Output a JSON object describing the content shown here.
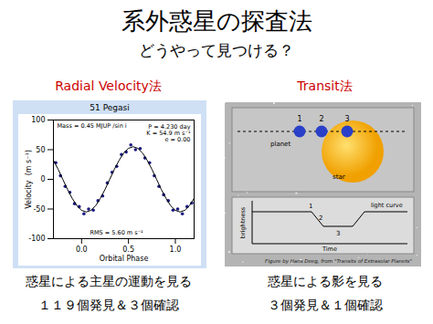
{
  "chart_data": {
    "type": "scatter",
    "title": "51 Pegasi",
    "x_label": "Orbital Phase",
    "y_label": "Velocity  (m s⁻¹)",
    "xlim": [
      -0.3,
      1.2
    ],
    "xticks": [
      {
        "value": 0,
        "label": "0.0"
      },
      0.5,
      {
        "value": 1,
        "label": "1.0"
      }
    ],
    "ylim": [
      -100,
      100
    ],
    "yticks": [
      -100,
      -50,
      0,
      50,
      100
    ],
    "grid": false,
    "annotations": [
      "Mass = 0.45 MJUP /sin i",
      "P = 4.230 day",
      "K = 54.9 m s⁻¹",
      "e = 0.00",
      "RMS = 5.60 m s⁻¹"
    ],
    "series": [
      {
        "type": "scatter",
        "marker": "circle",
        "color": "#1a1a80",
        "x": [
          -0.275,
          -0.225,
          -0.175,
          -0.125,
          -0.075,
          -0.025,
          0.025,
          0.075,
          0.125,
          0.175,
          0.225,
          0.275,
          0.325,
          0.375,
          0.425,
          0.475,
          0.525,
          0.575,
          0.625,
          0.675,
          0.725,
          0.775,
          0.825,
          0.875,
          0.925,
          0.975,
          1.025,
          1.075,
          1.125,
          1.175
        ],
        "values": [
          28,
          6,
          -12,
          -22,
          -41,
          -46,
          -58,
          -50,
          -52,
          -36,
          -28,
          -6,
          12,
          22,
          42,
          46,
          58,
          50,
          52,
          36,
          28,
          6,
          -12,
          -26,
          -36,
          -52,
          -50,
          -58,
          -46,
          -40
        ]
      },
      {
        "type": "line",
        "line_style": "solid",
        "color": "#000000",
        "x": [
          -0.3,
          -0.25,
          -0.2,
          -0.15,
          -0.1,
          -0.05,
          0,
          0.05,
          0.1,
          0.15,
          0.2,
          0.25,
          0.3,
          0.35,
          0.4,
          0.45,
          0.5,
          0.55,
          0.6,
          0.65,
          0.7,
          0.75,
          0.8,
          0.85,
          0.9,
          0.95,
          1,
          1.05,
          1.1,
          1.15,
          1.2
        ],
        "values": [
          32,
          17,
          0,
          -17,
          -32,
          -44.5,
          -52.3,
          -55,
          -52.3,
          -44.5,
          -32,
          -17,
          0,
          17,
          32,
          44.5,
          52.3,
          55,
          52.3,
          44.5,
          32,
          17,
          0,
          -17,
          -32,
          -44.5,
          -52.3,
          -55,
          -52.3,
          -44.5,
          -32
        ]
      }
    ]
  },
  "document": {
    "header": {
      "title": "系外惑星の探査法",
      "subtitle": "どうやって見つける？"
    },
    "left": {
      "heading": "Radial Velocity法",
      "caption": [
        "惑星による主星の運動を見る",
        "１１９個発見＆３個確認"
      ]
    },
    "right": {
      "heading": "Transit法",
      "figure": {
        "planet": "planet",
        "star": "star",
        "steps": [
          "1",
          "2",
          "3"
        ],
        "light_curve": "light curve",
        "y_label": "brightness",
        "x_label": "Time",
        "credit": "Figure by Hans Deeg, from \"Transits of Extrasolar Planets\""
      },
      "caption": [
        "惑星による影を見る",
        "３個発見＆１個確認"
      ]
    }
  }
}
